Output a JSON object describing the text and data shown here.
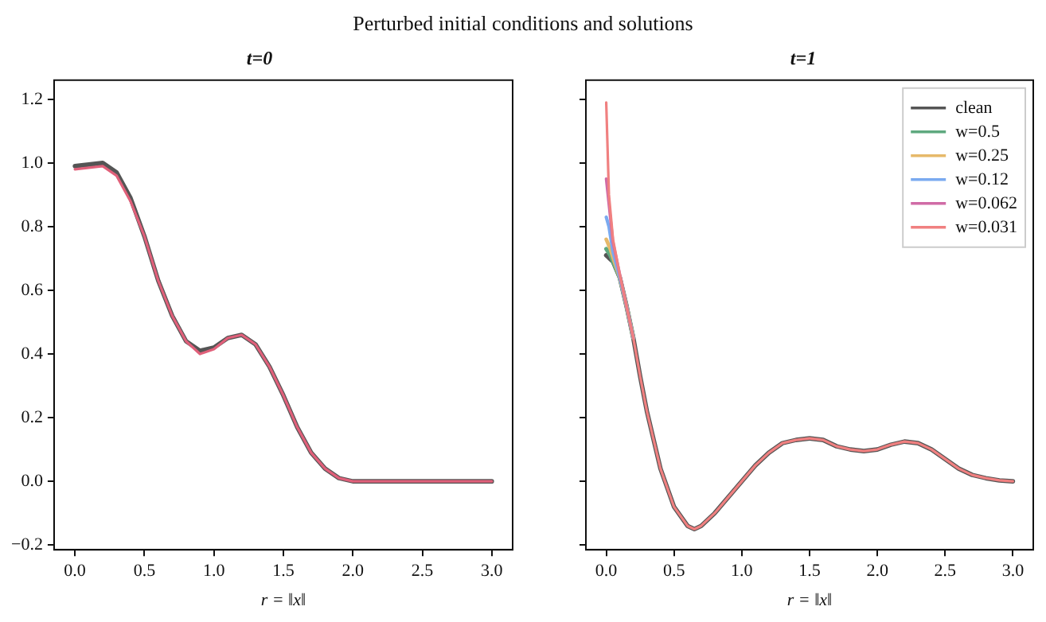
{
  "chart_data": [
    {
      "type": "line",
      "title": "Perturbed initial conditions and solutions",
      "subtitle": "t=0",
      "xlabel": "r = ‖x‖",
      "grid": false,
      "legend": false,
      "marker": "none",
      "line_style": "solid",
      "xlim": [
        -0.15,
        3.15
      ],
      "ylim": [
        -0.215,
        1.26
      ],
      "xticks": [
        {
          "value": 0,
          "label": "0.0"
        },
        {
          "value": 0.5,
          "label": "0.5"
        },
        {
          "value": 1,
          "label": "1.0"
        },
        {
          "value": 1.5,
          "label": "1.5"
        },
        {
          "value": 2,
          "label": "2.0"
        },
        {
          "value": 2.5,
          "label": "2.5"
        },
        {
          "value": 3,
          "label": "3.0"
        }
      ],
      "yticks": [
        {
          "value": -0.2,
          "label": "−0.2"
        },
        {
          "value": 0,
          "label": "0.0"
        },
        {
          "value": 0.2,
          "label": "0.2"
        },
        {
          "value": 0.4,
          "label": "0.4"
        },
        {
          "value": 0.6,
          "label": "0.6"
        },
        {
          "value": 0.8,
          "label": "0.8"
        },
        {
          "value": 1,
          "label": "1.0"
        },
        {
          "value": 1.2,
          "label": "1.2"
        }
      ],
      "series": [
        {
          "color": "#555555",
          "x": [
            0,
            0.1,
            0.2,
            0.3,
            0.4,
            0.5,
            0.6,
            0.7,
            0.8,
            0.9,
            1.0,
            1.1,
            1.2,
            1.3,
            1.4,
            1.5,
            1.6,
            1.7,
            1.8,
            1.9,
            2.0,
            2.5,
            3.0
          ],
          "values": [
            0.99,
            0.995,
            1.0,
            0.97,
            0.89,
            0.77,
            0.63,
            0.52,
            0.44,
            0.41,
            0.42,
            0.45,
            0.46,
            0.43,
            0.36,
            0.27,
            0.17,
            0.09,
            0.04,
            0.01,
            0.0,
            0.0,
            0.0
          ]
        },
        {
          "color": "#e0607a",
          "x": [
            0,
            0.1,
            0.2,
            0.3,
            0.4,
            0.5,
            0.6,
            0.7,
            0.8,
            0.9,
            1.0,
            1.1,
            1.2,
            1.3,
            1.4,
            1.5,
            1.6,
            1.7,
            1.8,
            1.9,
            2.0,
            2.5,
            3.0
          ],
          "values": [
            0.98,
            0.985,
            0.99,
            0.96,
            0.88,
            0.77,
            0.63,
            0.52,
            0.44,
            0.4,
            0.415,
            0.45,
            0.46,
            0.43,
            0.36,
            0.27,
            0.17,
            0.09,
            0.04,
            0.01,
            0.0,
            0.0,
            0.0
          ]
        }
      ]
    },
    {
      "type": "line",
      "subtitle": "t=1",
      "xlabel": "r = ‖x‖",
      "grid": false,
      "legend": "top right",
      "marker": "none",
      "line_style": "solid",
      "tick_labels": "x",
      "xlim": [
        -0.15,
        3.15
      ],
      "ylim": [
        -0.215,
        1.26
      ],
      "xticks": [
        {
          "value": 0,
          "label": "0.0"
        },
        {
          "value": 0.5,
          "label": "0.5"
        },
        {
          "value": 1,
          "label": "1.0"
        },
        {
          "value": 1.5,
          "label": "1.5"
        },
        {
          "value": 2,
          "label": "2.0"
        },
        {
          "value": 2.5,
          "label": "2.5"
        },
        {
          "value": 3,
          "label": "3.0"
        }
      ],
      "yticks": [
        {
          "value": -0.2,
          "label": null
        },
        {
          "value": 0,
          "label": null
        },
        {
          "value": 0.2,
          "label": null
        },
        {
          "value": 0.4,
          "label": null
        },
        {
          "value": 0.6,
          "label": null
        },
        {
          "value": 0.8,
          "label": null
        },
        {
          "value": 1,
          "label": null
        },
        {
          "value": 1.2,
          "label": null
        }
      ],
      "series": [
        {
          "name": "clean",
          "color": "#555555",
          "x": [
            0,
            0.05,
            0.1,
            0.15,
            0.2,
            0.25,
            0.3,
            0.4,
            0.5,
            0.6,
            0.65,
            0.7,
            0.8,
            0.9,
            1.0,
            1.1,
            1.2,
            1.3,
            1.4,
            1.5,
            1.6,
            1.7,
            1.8,
            1.9,
            2.0,
            2.1,
            2.2,
            2.3,
            2.4,
            2.5,
            2.6,
            2.7,
            2.8,
            2.9,
            3.0
          ],
          "values": [
            0.71,
            0.69,
            0.64,
            0.55,
            0.45,
            0.33,
            0.22,
            0.04,
            -0.08,
            -0.14,
            -0.15,
            -0.14,
            -0.1,
            -0.05,
            0.0,
            0.05,
            0.09,
            0.12,
            0.13,
            0.135,
            0.13,
            0.11,
            0.1,
            0.095,
            0.1,
            0.115,
            0.125,
            0.12,
            0.1,
            0.07,
            0.04,
            0.02,
            0.01,
            0.003,
            0.0
          ]
        },
        {
          "name": "w=0.5",
          "color": "#5fa97f",
          "x": [
            0,
            0.03,
            0.06,
            0.1,
            0.15,
            0.2
          ],
          "values": [
            0.73,
            0.71,
            0.68,
            0.64,
            0.55,
            0.45
          ]
        },
        {
          "name": "w=0.25",
          "color": "#e6b96a",
          "x": [
            0,
            0.03,
            0.06,
            0.1,
            0.15,
            0.2
          ],
          "values": [
            0.76,
            0.73,
            0.69,
            0.64,
            0.55,
            0.45
          ]
        },
        {
          "name": "w=0.12",
          "color": "#7aaaf0",
          "x": [
            0,
            0.02,
            0.05,
            0.1,
            0.15,
            0.2
          ],
          "values": [
            0.83,
            0.8,
            0.72,
            0.64,
            0.55,
            0.45
          ]
        },
        {
          "name": "w=0.062",
          "color": "#d06ba6",
          "x": [
            0,
            0.02,
            0.05,
            0.1,
            0.15,
            0.2
          ],
          "values": [
            0.95,
            0.87,
            0.75,
            0.65,
            0.55,
            0.45
          ]
        },
        {
          "name": "w=0.031",
          "color": "#f08080",
          "x": [
            0,
            0.02,
            0.05,
            0.1,
            0.15,
            0.2,
            0.25,
            0.3,
            0.4,
            0.5,
            0.6,
            0.65,
            0.7,
            0.8,
            0.9,
            1.0,
            1.1,
            1.2,
            1.3,
            1.4,
            1.5,
            1.6,
            1.7,
            1.8,
            1.9,
            2.0,
            2.1,
            2.2,
            2.3,
            2.4,
            2.5,
            2.6,
            2.7,
            2.8,
            2.9,
            3.0
          ],
          "values": [
            1.19,
            0.9,
            0.76,
            0.65,
            0.55,
            0.45,
            0.33,
            0.22,
            0.04,
            -0.08,
            -0.14,
            -0.15,
            -0.14,
            -0.1,
            -0.05,
            0.0,
            0.05,
            0.09,
            0.12,
            0.13,
            0.135,
            0.13,
            0.11,
            0.1,
            0.095,
            0.1,
            0.115,
            0.125,
            0.12,
            0.1,
            0.07,
            0.04,
            0.02,
            0.01,
            0.003,
            0.0
          ]
        }
      ]
    }
  ]
}
